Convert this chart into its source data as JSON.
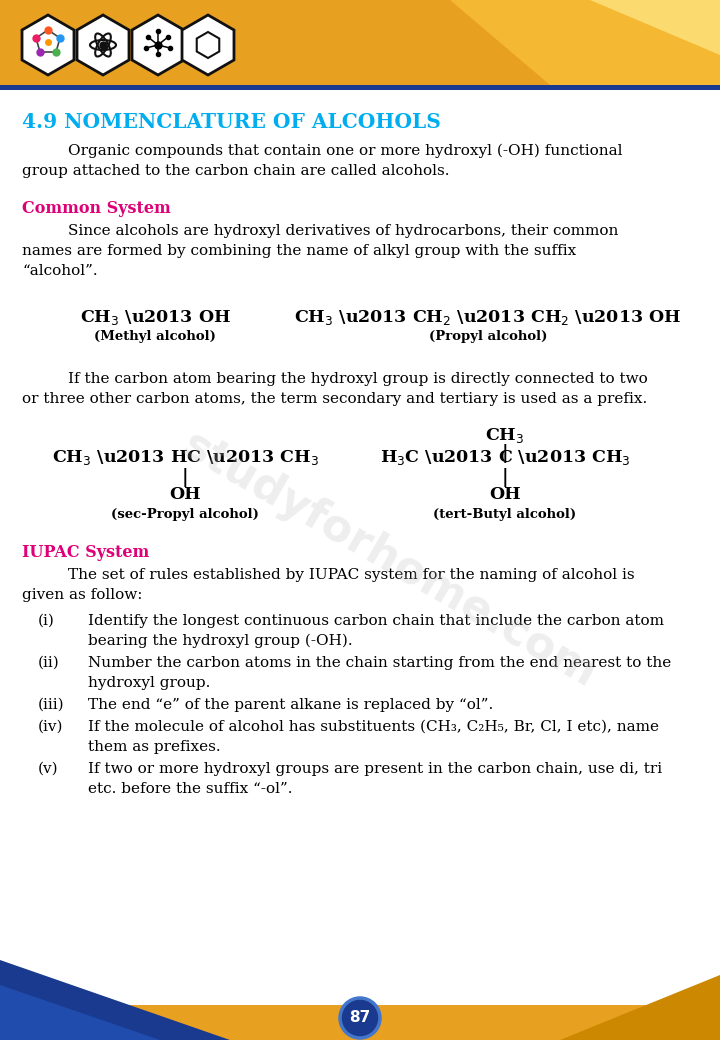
{
  "title": "4.9 NOMENCLATURE OF ALCOHOLS",
  "title_color": "#00AEEF",
  "header_bg": "#E8A020",
  "header_light": "#F5B030",
  "header_pale": "#F8C860",
  "page_number": "87",
  "body_bg": "#FFFFFF",
  "pink_color": "#DD0077",
  "blue_dark": "#1A3A8F",
  "blue_line": "#1A3A8F",
  "watermark": "studyforhome.com"
}
